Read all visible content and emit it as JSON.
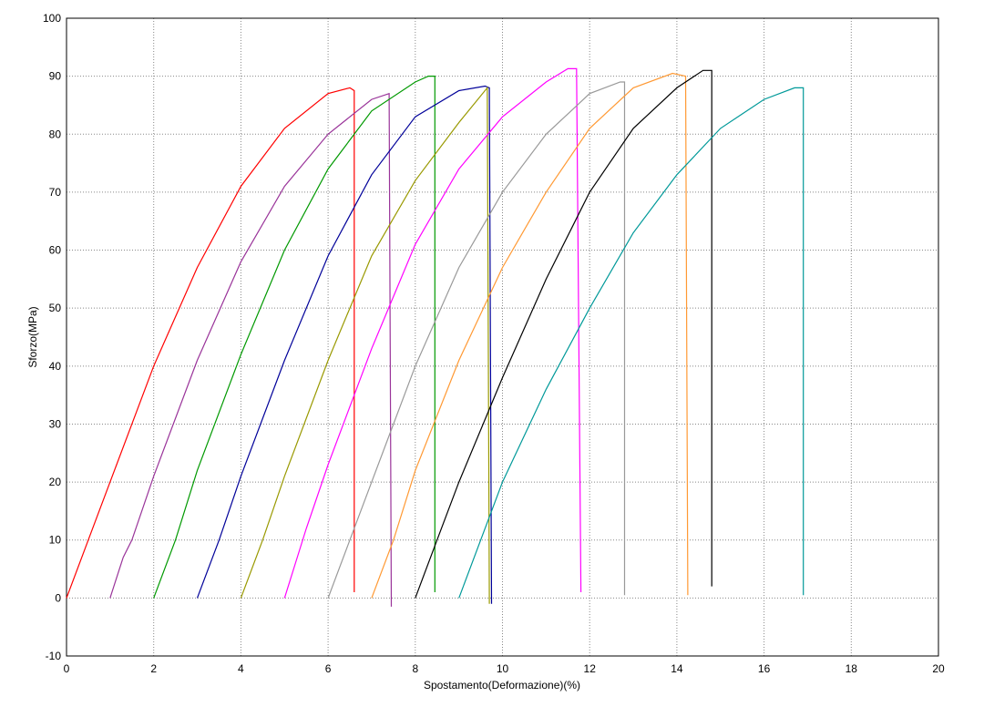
{
  "chart_data": {
    "type": "line",
    "xlabel": "Spostamento(Deformazione)(%)",
    "ylabel": "Sforzo(MPa)",
    "xlim": [
      0,
      20
    ],
    "ylim": [
      -10,
      100
    ],
    "xticks": [
      0,
      2,
      4,
      6,
      8,
      10,
      12,
      14,
      16,
      18,
      20
    ],
    "yticks": [
      -10,
      0,
      10,
      20,
      30,
      40,
      50,
      60,
      70,
      80,
      90,
      100
    ],
    "grid": true,
    "series": [
      {
        "color": "#ff0000",
        "x": [
          0,
          0.5,
          1,
          2,
          3,
          4,
          5,
          6,
          6.5,
          6.6,
          6.6
        ],
        "values": [
          0,
          10,
          20,
          40,
          57,
          71,
          81,
          87,
          88,
          87.5,
          1
        ]
      },
      {
        "color": "#993399",
        "x": [
          1,
          1.3,
          1.5,
          2,
          3,
          4,
          5,
          6,
          7,
          7.4,
          7.45
        ],
        "values": [
          0,
          7,
          10,
          21,
          41,
          58,
          71,
          80,
          86,
          87,
          -1.5
        ]
      },
      {
        "color": "#009900",
        "x": [
          2,
          2.5,
          3,
          4,
          5,
          6,
          7,
          8,
          8.3,
          8.45,
          8.45
        ],
        "values": [
          0,
          10,
          22,
          42,
          60,
          74,
          84,
          89,
          90,
          90,
          1
        ]
      },
      {
        "color": "#000099",
        "x": [
          3,
          3.5,
          4,
          5,
          6,
          7,
          8,
          9,
          9.6,
          9.7,
          9.75
        ],
        "values": [
          0,
          10,
          21,
          41,
          59,
          73,
          83,
          87.5,
          88.3,
          88,
          -1
        ]
      },
      {
        "color": "#999900",
        "x": [
          4,
          4.5,
          5,
          6,
          7,
          8,
          9,
          9.65,
          9.7
        ],
        "values": [
          0,
          10,
          21,
          41,
          59,
          72,
          82,
          88,
          -1
        ]
      },
      {
        "color": "#ff00ff",
        "x": [
          5,
          5.5,
          6,
          7,
          8,
          9,
          10,
          11,
          11.5,
          11.7,
          11.8
        ],
        "values": [
          0,
          12,
          23,
          43,
          61,
          74,
          83,
          89,
          91.3,
          91.3,
          1
        ]
      },
      {
        "color": "#999999",
        "x": [
          6,
          6.5,
          7,
          8,
          9,
          10,
          11,
          12,
          12.7,
          12.8,
          12.8
        ],
        "values": [
          0,
          10,
          20,
          40,
          57,
          70,
          80,
          87,
          89,
          89,
          0.5
        ]
      },
      {
        "color": "#ff9933",
        "x": [
          7,
          7.5,
          8,
          9,
          10,
          11,
          12,
          13,
          13.9,
          14.2,
          14.25
        ],
        "values": [
          0,
          10,
          22,
          41,
          57,
          70,
          81,
          88,
          90.5,
          90,
          0.5
        ]
      },
      {
        "color": "#000000",
        "x": [
          8,
          8.5,
          9,
          10,
          11,
          12,
          13,
          14,
          14.6,
          14.8,
          14.8
        ],
        "values": [
          0,
          10,
          20,
          38,
          55,
          70,
          81,
          88,
          91,
          91,
          2
        ]
      },
      {
        "color": "#009999",
        "x": [
          9,
          9.5,
          10,
          11,
          12,
          13,
          14,
          15,
          16,
          16.7,
          16.9,
          16.9
        ],
        "values": [
          0,
          10,
          20,
          36,
          50,
          63,
          73,
          81,
          86,
          88,
          88,
          0.5
        ]
      }
    ]
  }
}
